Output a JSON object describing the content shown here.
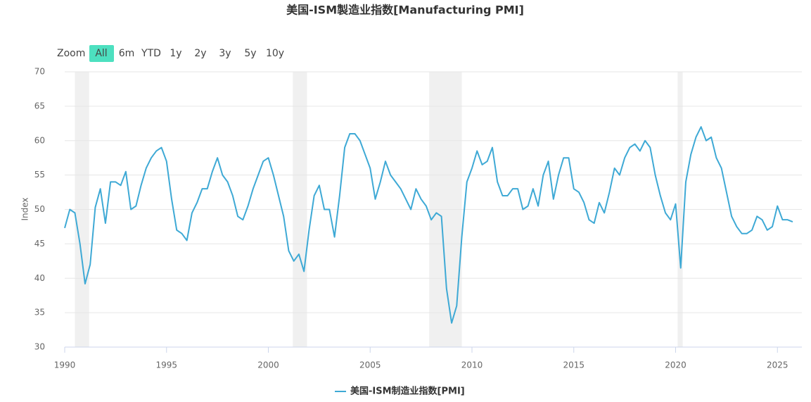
{
  "chart_data": {
    "type": "line",
    "title": "美国-ISM製造业指数[Manufacturing PMI]",
    "y_label": "Index",
    "range_selector": {
      "label": "Zoom",
      "buttons": [
        "All",
        "6m",
        "YTD",
        "1y",
        "2y",
        "3y",
        "5y",
        "10y"
      ],
      "selected": 0
    },
    "x": [
      1990,
      1990.25,
      1990.5,
      1990.75,
      1991,
      1991.25,
      1991.5,
      1991.75,
      1992,
      1992.25,
      1992.5,
      1992.75,
      1993,
      1993.25,
      1993.5,
      1993.75,
      1994,
      1994.25,
      1994.5,
      1994.75,
      1995,
      1995.25,
      1995.5,
      1995.75,
      1996,
      1996.25,
      1996.5,
      1996.75,
      1997,
      1997.25,
      1997.5,
      1997.75,
      1998,
      1998.25,
      1998.5,
      1998.75,
      1999,
      1999.25,
      1999.5,
      1999.75,
      2000,
      2000.25,
      2000.5,
      2000.75,
      2001,
      2001.25,
      2001.5,
      2001.75,
      2002,
      2002.25,
      2002.5,
      2002.75,
      2003,
      2003.25,
      2003.5,
      2003.75,
      2004,
      2004.25,
      2004.5,
      2004.75,
      2005,
      2005.25,
      2005.5,
      2005.75,
      2006,
      2006.25,
      2006.5,
      2006.75,
      2007,
      2007.25,
      2007.5,
      2007.75,
      2008,
      2008.25,
      2008.5,
      2008.75,
      2009,
      2009.25,
      2009.5,
      2009.75,
      2010,
      2010.25,
      2010.5,
      2010.75,
      2011,
      2011.25,
      2011.5,
      2011.75,
      2012,
      2012.25,
      2012.5,
      2012.75,
      2013,
      2013.25,
      2013.5,
      2013.75,
      2014,
      2014.25,
      2014.5,
      2014.75,
      2015,
      2015.25,
      2015.5,
      2015.75,
      2016,
      2016.25,
      2016.5,
      2016.75,
      2017,
      2017.25,
      2017.5,
      2017.75,
      2018,
      2018.25,
      2018.5,
      2018.75,
      2019,
      2019.25,
      2019.5,
      2019.75,
      2020,
      2020.25,
      2020.5,
      2020.75,
      2021,
      2021.25,
      2021.5,
      2021.75,
      2022,
      2022.25,
      2022.5,
      2022.75,
      2023,
      2023.25,
      2023.5,
      2023.75,
      2024,
      2024.25,
      2024.5,
      2024.75,
      2025,
      2025.25,
      2025.5,
      2025.75
    ],
    "series": [
      {
        "name": "美国-ISM制造业指数[PMI]",
        "color": "#3ea9d5",
        "values": [
          47.3,
          50,
          49.5,
          45,
          39.2,
          42,
          50.3,
          53,
          48,
          54,
          54,
          53.5,
          55.5,
          50,
          50.5,
          53.5,
          56,
          57.5,
          58.5,
          59,
          57,
          51.5,
          47,
          46.5,
          45.5,
          49.5,
          51,
          53,
          53,
          55.5,
          57.5,
          55,
          54,
          52,
          49,
          48.5,
          50.5,
          53,
          55,
          57,
          57.5,
          55,
          52,
          49,
          44,
          42.5,
          43.5,
          41,
          47,
          52,
          53.5,
          50,
          50,
          46,
          52,
          59,
          61,
          61,
          60,
          58,
          56,
          51.5,
          54,
          57,
          55,
          54,
          53,
          51.5,
          50,
          53,
          51.5,
          50.5,
          48.5,
          49.5,
          49,
          38.5,
          33.5,
          36,
          46,
          54,
          56,
          58.5,
          56.5,
          57,
          59,
          54,
          52,
          52,
          53,
          53,
          50,
          50.5,
          53,
          50.5,
          55,
          57,
          51.5,
          55,
          57.5,
          57.5,
          53,
          52.5,
          51,
          48.5,
          48,
          51,
          49.5,
          52.5,
          56,
          55,
          57.5,
          59,
          59.5,
          58.5,
          60,
          59,
          55,
          52,
          49.5,
          48.5,
          50.8,
          41.5,
          54,
          58,
          60.5,
          62,
          60,
          60.5,
          57.5,
          56,
          52.5,
          49,
          47.5,
          46.5,
          46.5,
          47,
          49,
          48.5,
          47,
          47.5,
          50.5,
          48.5,
          48.5,
          48.2
        ]
      }
    ],
    "shaded_ranges": [
      [
        1990.5,
        1991.2
      ],
      [
        2001.2,
        2001.9
      ],
      [
        2007.9,
        2009.5
      ],
      [
        2020.1,
        2020.35
      ]
    ],
    "xlim": [
      1990,
      2026.2
    ],
    "xticks": [
      1990,
      1995,
      2000,
      2005,
      2010,
      2015,
      2020,
      2025
    ],
    "ylim": [
      30,
      70
    ],
    "yticks": [
      30,
      35,
      40,
      45,
      50,
      55,
      60,
      65,
      70
    ],
    "grid": true,
    "legend": "bottom"
  }
}
